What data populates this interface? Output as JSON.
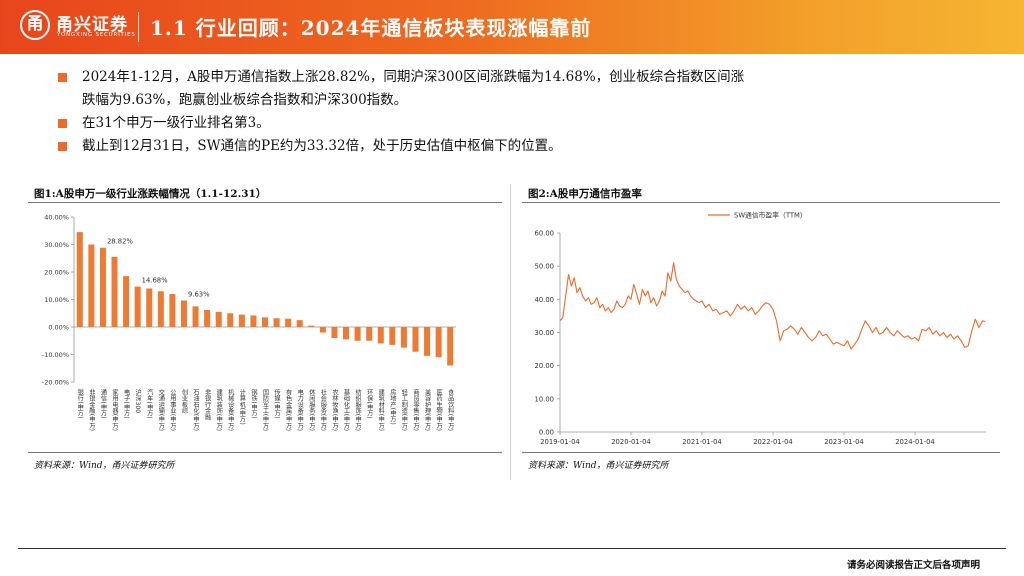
{
  "header": {
    "logo_glyph": "甬",
    "logo_name": "甬兴证券",
    "logo_sub": "YONGXING SECURITIES",
    "title": "1.1 行业回顾：2024年通信板块表现涨幅靠前",
    "colors": {
      "start": "#e8451c",
      "end": "#f6b532"
    }
  },
  "bullets": [
    {
      "line1": "2024年1-12月，A股申万通信指数上涨28.82%，同期沪深300区间涨跌幅为14.68%，创业板综合指数区间涨",
      "line2": "跌幅为9.63%，跑赢创业板综合指数和沪深300指数。"
    },
    {
      "line1": "在31个申万一级行业排名第3。"
    },
    {
      "line1": "截止到12月31日，SW通信的PE约为33.32倍，处于历史估值中枢偏下的位置。"
    }
  ],
  "left_panel": {
    "title": "图1:A股申万一级行业涨跌幅情况（1.1-12.31）",
    "source": "资料来源：Wind，甬兴证券研究所"
  },
  "right_panel": {
    "title": "图2:A股申万通信市盈率",
    "source": "资料来源：Wind，甬兴证券研究所"
  },
  "footer": {
    "disclaimer": "请务必阅读报告正文后各项声明"
  },
  "chart_data": [
    {
      "type": "bar",
      "title": "图1:A股申万一级行业涨跌幅情况（1.1-12.31）",
      "color": "#ee7b33",
      "ylim": [
        -20,
        40
      ],
      "yticks": [
        "40.00%",
        "30.00%",
        "20.00%",
        "10.00%",
        "0.00%",
        "-10.00%",
        "-20.00%"
      ],
      "ytick_values": [
        40,
        30,
        20,
        10,
        0,
        -10,
        -20
      ],
      "categories": [
        "银行(申万)",
        "非银金融(申万)",
        "通信(申万)",
        "家用电器(申万)",
        "电子(申万)",
        "沪深300",
        "汽车(申万)",
        "交通运输(申万)",
        "公用事业(申万)",
        "创业板综",
        "石油石化(申万)",
        "非银行金融",
        "建筑装饰(申万)",
        "机械设备(申万)",
        "计算机(申万)",
        "钢铁(申万)",
        "国防军工(申万)",
        "传媒(申万)",
        "有色金属(申万)",
        "电力设备(申万)",
        "休闲服务(申万)",
        "社会服务(申万)",
        "农林牧渔(申万)",
        "基础化工(申万)",
        "纺织服饰(申万)",
        "环保(申万)",
        "建筑材料(申万)",
        "房地产(申万)",
        "轻工制造(申万)",
        "商贸零售(申万)",
        "美容护理(申万)",
        "医药生物(申万)",
        "食品饮料(申万)"
      ],
      "values": [
        34.5,
        30.0,
        28.82,
        25.5,
        18.5,
        14.68,
        14.0,
        13.0,
        12.0,
        9.63,
        7.5,
        6.2,
        5.5,
        5.0,
        4.5,
        4.2,
        3.5,
        3.2,
        3.0,
        2.5,
        0.5,
        -2.0,
        -4.0,
        -4.5,
        -5.0,
        -5.0,
        -6.0,
        -6.5,
        -7.5,
        -9.0,
        -10.5,
        -11.0,
        -14.0
      ],
      "data_labels": [
        {
          "index": 2,
          "text": "28.82%"
        },
        {
          "index": 5,
          "text": "14.68%"
        },
        {
          "index": 9,
          "text": "9.63%"
        }
      ]
    },
    {
      "type": "line",
      "title": "图2:A股申万通信市盈率",
      "legend": "SW通信市盈率（TTM）",
      "color": "#ee6a2a",
      "ylim": [
        0,
        60
      ],
      "yticks": [
        "60.00",
        "50.00",
        "40.00",
        "30.00",
        "20.00",
        "10.00",
        "0.00"
      ],
      "ytick_values": [
        60,
        50,
        40,
        30,
        20,
        10,
        0
      ],
      "xlim": [
        2019.0,
        2025.0
      ],
      "xticks": [
        "2019-01-04",
        "2020-01-04",
        "2021-01-04",
        "2022-01-04",
        "2023-01-04",
        "2024-01-04"
      ],
      "xtick_values": [
        2019.0,
        2020.0,
        2021.0,
        2022.0,
        2023.0,
        2024.0
      ],
      "x": [
        2019.0,
        2019.04,
        2019.08,
        2019.12,
        2019.16,
        2019.2,
        2019.24,
        2019.28,
        2019.32,
        2019.36,
        2019.4,
        2019.44,
        2019.48,
        2019.52,
        2019.56,
        2019.6,
        2019.64,
        2019.68,
        2019.72,
        2019.76,
        2019.8,
        2019.84,
        2019.88,
        2019.92,
        2019.96,
        2020.0,
        2020.04,
        2020.08,
        2020.12,
        2020.16,
        2020.2,
        2020.24,
        2020.28,
        2020.32,
        2020.36,
        2020.4,
        2020.44,
        2020.48,
        2020.52,
        2020.56,
        2020.6,
        2020.64,
        2020.68,
        2020.72,
        2020.76,
        2020.8,
        2020.84,
        2020.88,
        2020.92,
        2020.96,
        2021.0,
        2021.05,
        2021.1,
        2021.15,
        2021.2,
        2021.25,
        2021.3,
        2021.35,
        2021.4,
        2021.45,
        2021.5,
        2021.55,
        2021.6,
        2021.65,
        2021.7,
        2021.75,
        2021.8,
        2021.85,
        2021.9,
        2021.95,
        2022.0,
        2022.05,
        2022.1,
        2022.15,
        2022.2,
        2022.25,
        2022.3,
        2022.35,
        2022.4,
        2022.45,
        2022.5,
        2022.55,
        2022.6,
        2022.65,
        2022.7,
        2022.75,
        2022.8,
        2022.85,
        2022.9,
        2022.95,
        2023.0,
        2023.05,
        2023.1,
        2023.15,
        2023.2,
        2023.25,
        2023.3,
        2023.35,
        2023.4,
        2023.45,
        2023.5,
        2023.55,
        2023.6,
        2023.65,
        2023.7,
        2023.75,
        2023.8,
        2023.85,
        2023.9,
        2023.95,
        2024.0,
        2024.05,
        2024.1,
        2024.15,
        2024.2,
        2024.25,
        2024.3,
        2024.35,
        2024.4,
        2024.45,
        2024.5,
        2024.55,
        2024.6,
        2024.65,
        2024.7,
        2024.75,
        2024.8,
        2024.85,
        2024.9,
        2024.95,
        2024.99
      ],
      "values": [
        33.5,
        34.5,
        41.0,
        47.5,
        44.0,
        46.5,
        42.0,
        43.5,
        41.0,
        39.5,
        40.5,
        38.5,
        39.0,
        40.5,
        37.5,
        38.5,
        36.5,
        37.5,
        36.0,
        37.0,
        39.5,
        38.0,
        37.5,
        38.5,
        41.0,
        40.0,
        44.5,
        41.5,
        38.5,
        43.0,
        41.0,
        42.5,
        39.0,
        40.5,
        38.0,
        39.5,
        42.5,
        41.0,
        48.0,
        45.5,
        51.0,
        46.0,
        44.0,
        43.0,
        42.0,
        42.5,
        41.0,
        40.0,
        39.5,
        39.0,
        39.5,
        37.5,
        38.5,
        36.5,
        37.0,
        35.5,
        36.0,
        36.5,
        35.0,
        36.5,
        38.5,
        37.0,
        38.0,
        36.5,
        37.5,
        35.5,
        36.5,
        38.0,
        39.0,
        38.5,
        37.0,
        33.5,
        27.5,
        30.5,
        31.0,
        32.0,
        31.0,
        29.5,
        31.5,
        30.0,
        28.5,
        27.5,
        28.5,
        30.5,
        29.0,
        29.5,
        28.0,
        26.5,
        27.0,
        26.5,
        26.0,
        27.5,
        25.0,
        26.5,
        28.0,
        31.0,
        33.5,
        32.0,
        30.0,
        31.5,
        29.5,
        30.0,
        31.5,
        30.0,
        29.0,
        30.5,
        29.5,
        28.5,
        29.0,
        28.0,
        28.5,
        27.5,
        31.0,
        30.5,
        31.5,
        29.5,
        30.5,
        29.0,
        30.0,
        28.5,
        29.5,
        28.0,
        29.0,
        27.5,
        25.5,
        26.0,
        30.5,
        34.0,
        31.5,
        33.5,
        33.32
      ]
    }
  ]
}
